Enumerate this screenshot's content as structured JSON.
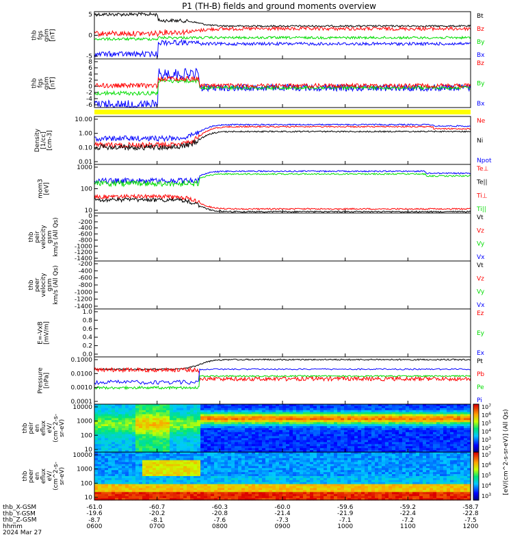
{
  "title": "P1 (TH-B) fields and ground moments overview",
  "colors": {
    "black": "#000000",
    "red": "#ff0000",
    "green": "#00dd00",
    "blue": "#0000ff",
    "yellow": "#ffff00"
  },
  "chart_data": {
    "type": "line",
    "x_ticks": [
      "0600",
      "0700",
      "0800",
      "0900",
      "1000",
      "1100",
      "1200"
    ],
    "panels": [
      {
        "id": "fgs",
        "ylabel_lines": [
          "thb",
          "fgs",
          "gsm",
          "[nT]"
        ],
        "ticks": [
          "5",
          "0",
          "-5"
        ],
        "legend": [
          {
            "label": "Bt",
            "color": "black"
          },
          {
            "label": "Bz",
            "color": "red"
          },
          {
            "label": "By",
            "color": "green"
          },
          {
            "label": "Bx",
            "color": "blue"
          }
        ]
      },
      {
        "id": "fgs_dsl",
        "ylabel_lines": [
          "thb",
          "fgs",
          "gsm",
          "[nT]"
        ],
        "ticks": [
          "8",
          "6",
          "4",
          "2",
          "0",
          "-2",
          "-4",
          "-6"
        ],
        "legend": [
          {
            "label": "Bz",
            "color": "red"
          },
          {
            "label": "By",
            "color": "green"
          },
          {
            "label": "Bx",
            "color": "blue"
          }
        ]
      },
      {
        "id": "density",
        "ylabel_lines": [
          "Density",
          "[1/cc]",
          "[cm-3]"
        ],
        "ticks": [
          "10.00",
          "1.00",
          "0.10",
          "0.01"
        ],
        "scale": "log",
        "legend": [
          {
            "label": "Ne",
            "color": "red"
          },
          {
            "label": "Ni",
            "color": "black"
          },
          {
            "label": "Npot",
            "color": "blue"
          }
        ]
      },
      {
        "id": "temp",
        "ylabel_lines": [
          "mom3",
          "[eV]"
        ],
        "ticks": [
          "1000",
          "100",
          "10"
        ],
        "scale": "log",
        "legend": [
          {
            "label": "Te⊥",
            "color": "red"
          },
          {
            "label": "Te||",
            "color": "black"
          },
          {
            "label": "Ti⊥",
            "color": "red"
          },
          {
            "label": "Ti||",
            "color": "green"
          }
        ]
      },
      {
        "id": "v_peir",
        "ylabel_lines": [
          "thb",
          "peir",
          "velocity",
          "gsm",
          "km/s (All Qs)"
        ],
        "ticks": [
          "0",
          "-200",
          "-400",
          "-600",
          "-800",
          "-1000",
          "-1200",
          "-1400"
        ],
        "legend": [
          {
            "label": "Vt",
            "color": "black"
          },
          {
            "label": "Vz",
            "color": "red"
          },
          {
            "label": "Vy",
            "color": "green"
          },
          {
            "label": "Vx",
            "color": "blue"
          }
        ]
      },
      {
        "id": "v_peer",
        "ylabel_lines": [
          "thb",
          "peer",
          "velocity",
          "gsm",
          "km/s (All Qs)"
        ],
        "ticks": [
          "-200",
          "-400",
          "-600",
          "-800",
          "-1000",
          "-1200",
          "-1400"
        ],
        "legend": [
          {
            "label": "Vt",
            "color": "black"
          },
          {
            "label": "Vz",
            "color": "red"
          },
          {
            "label": "Vy",
            "color": "green"
          },
          {
            "label": "Vx",
            "color": "blue"
          }
        ]
      },
      {
        "id": "efield",
        "ylabel_lines": [
          "E=-VxB",
          "[mV/m]"
        ],
        "ticks": [
          "1.0",
          "0.8",
          "0.6",
          "0.4",
          "0.2",
          "0.0"
        ],
        "legend": [
          {
            "label": "Ez",
            "color": "red"
          },
          {
            "label": "Ey",
            "color": "green"
          },
          {
            "label": "Ex",
            "color": "blue"
          }
        ]
      },
      {
        "id": "pressure",
        "ylabel_lines": [
          "Pressure",
          "[nPa]"
        ],
        "ticks": [
          "0.1000",
          "0.0100",
          "0.0010",
          "0.0001"
        ],
        "scale": "log",
        "legend": [
          {
            "label": "Pt",
            "color": "black"
          },
          {
            "label": "Pb",
            "color": "red"
          },
          {
            "label": "Pe",
            "color": "green"
          },
          {
            "label": "Pi",
            "color": "blue"
          }
        ]
      },
      {
        "id": "ion_spec",
        "ylabel_lines": [
          "thb",
          "peir",
          "en",
          "eflux",
          "eV/",
          "(cm^2-s-",
          "sr-eV)"
        ],
        "ticks": [
          "10000",
          "1000",
          "100",
          "10"
        ],
        "scale": "log"
      },
      {
        "id": "elec_spec",
        "ylabel_lines": [
          "thb",
          "peer",
          "en",
          "eflux",
          "eV/",
          "(cm^2-s-",
          "sr-eV)"
        ],
        "ticks": [
          "10000",
          "1000",
          "100",
          "10"
        ],
        "scale": "log"
      }
    ],
    "colorbar1": {
      "ticks": [
        "10^7",
        "10^6",
        "10^5",
        "10^4",
        "10^3",
        "10^2"
      ]
    },
    "colorbar2": {
      "ticks": [
        "10^7",
        "10^6",
        "10^5",
        "10^4",
        "10^3"
      ]
    },
    "colorbar_label": "[eV/(cm^2-s-sr-eV)] (All Qs)",
    "ephem": {
      "labels": [
        "thb_X-GSM",
        "thb_Y-GSM",
        "thb_Z-GSM",
        "hhmm",
        "2024 Mar 27"
      ],
      "x": [
        "-61.0",
        "-60.7",
        "-60.3",
        "-60.0",
        "-59.6",
        "-59.2",
        "-58.7"
      ],
      "y": [
        "-19.6",
        "-20.2",
        "-20.8",
        "-21.4",
        "-21.9",
        "-22.4",
        "-22.8"
      ],
      "z": [
        "-8.7",
        "-8.1",
        "-7.6",
        "-7.3",
        "-7.1",
        "-7.2",
        "-7.5"
      ]
    }
  }
}
